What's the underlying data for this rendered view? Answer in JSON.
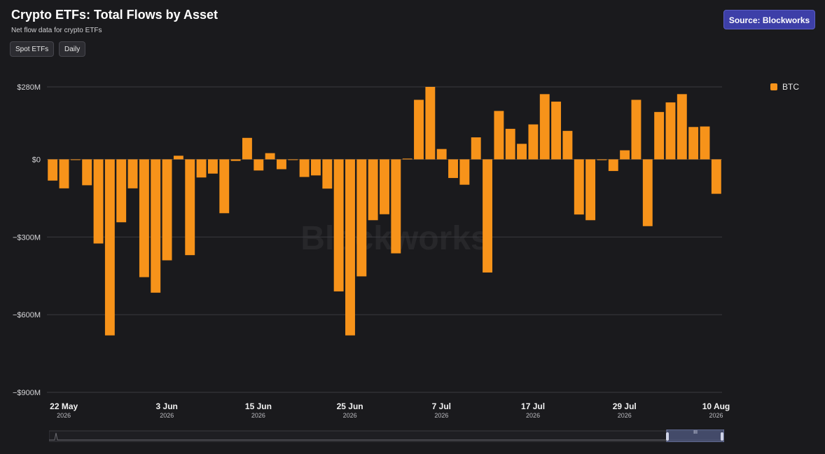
{
  "header": {
    "title": "Crypto ETFs: Total Flows by Asset",
    "subtitle": "Net flow data for crypto ETFs",
    "filter_asset": "Spot ETFs",
    "filter_period": "Daily",
    "source_label": "Source: Blockworks"
  },
  "watermark": "Blockworks",
  "colors": {
    "bar": "#f7931a",
    "background": "#1a1a1d",
    "grid": "#3a3a3f",
    "accent": "#3d3fa8"
  },
  "chart_data": {
    "type": "bar",
    "title": "Crypto ETFs: Total Flows by Asset",
    "ylim": [
      -900,
      280
    ],
    "y_ticks": [
      {
        "value": 280,
        "label": "$280M"
      },
      {
        "value": 0,
        "label": "$0"
      },
      {
        "value": -300,
        "label": "−$300M"
      },
      {
        "value": -600,
        "label": "−$600M"
      },
      {
        "value": -900,
        "label": "−$900M"
      }
    ],
    "x_ticks": [
      {
        "index": 0,
        "label": "22 May",
        "year": "2026"
      },
      {
        "index": 9,
        "label": "3 Jun",
        "year": "2026"
      },
      {
        "index": 17,
        "label": "15 Jun",
        "year": "2026"
      },
      {
        "index": 25,
        "label": "25 Jun",
        "year": "2026"
      },
      {
        "index": 33,
        "label": "7 Jul",
        "year": "2026"
      },
      {
        "index": 41,
        "label": "17 Jul",
        "year": "2026"
      },
      {
        "index": 49,
        "label": "29 Jul",
        "year": "2026"
      },
      {
        "index": 57,
        "label": "10 Aug",
        "year": "2026"
      }
    ],
    "grid": true,
    "legend_position": "top-right",
    "series": [
      {
        "name": "BTC",
        "values": [
          -82,
          -112,
          -2,
          -100,
          -325,
          -680,
          -243,
          -112,
          -455,
          -515,
          -390,
          14,
          -370,
          -70,
          -55,
          -208,
          -6,
          83,
          -43,
          24,
          -38,
          -2,
          -68,
          -62,
          -113,
          -510,
          -680,
          -452,
          -235,
          -212,
          -363,
          3,
          230,
          280,
          40,
          -72,
          -98,
          85,
          -437,
          187,
          118,
          60,
          135,
          252,
          223,
          110,
          -213,
          -235,
          -3,
          -45,
          35,
          230,
          -258,
          183,
          220,
          252,
          125,
          127,
          -133
        ]
      }
    ]
  }
}
